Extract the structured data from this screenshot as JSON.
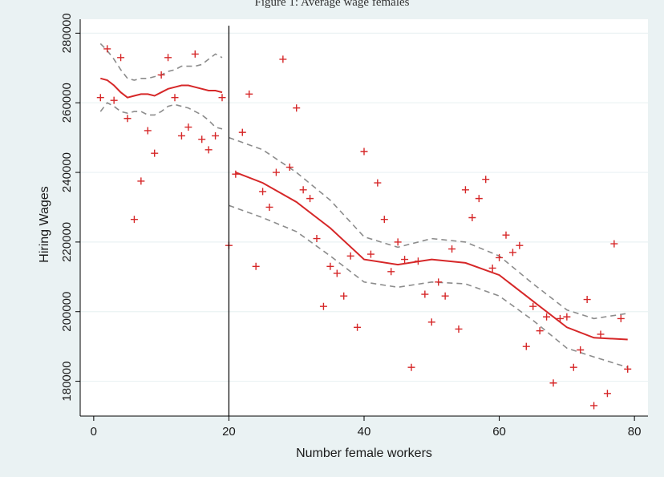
{
  "figure_title": "Figure 1: Average wage females",
  "chart_data": {
    "type": "scatter",
    "xlabel": "Number female workers",
    "ylabel": "Hiring Wages",
    "xlim": [
      -2,
      82
    ],
    "ylim": [
      170000,
      284000
    ],
    "x_ticks": [
      0,
      20,
      40,
      60,
      80
    ],
    "x_tick_labels": [
      "0",
      "20",
      "40",
      "60",
      "80"
    ],
    "y_ticks": [
      180000,
      200000,
      220000,
      240000,
      260000,
      280000
    ],
    "y_tick_labels": [
      "180000",
      "200000",
      "220000",
      "240000",
      "260000",
      "280000"
    ],
    "grid": "horizontal",
    "legend": "none",
    "cutoff_x": 20,
    "colors": {
      "points": "#d62728",
      "fit": "#d62728",
      "ci": "#8c8c8c",
      "cutoff": "#000000",
      "grid": "#eaf2f3",
      "outer_bg": "#eaf2f3"
    },
    "points": [
      [
        1,
        261500
      ],
      [
        2,
        275500
      ],
      [
        3,
        260700
      ],
      [
        4,
        273000
      ],
      [
        5,
        255500
      ],
      [
        6,
        226500
      ],
      [
        7,
        237500
      ],
      [
        8,
        252000
      ],
      [
        9,
        245500
      ],
      [
        10,
        268000
      ],
      [
        11,
        273000
      ],
      [
        12,
        261500
      ],
      [
        13,
        250500
      ],
      [
        14,
        253000
      ],
      [
        15,
        274000
      ],
      [
        16,
        249500
      ],
      [
        17,
        246500
      ],
      [
        18,
        250500
      ],
      [
        19,
        261500
      ],
      [
        20,
        219000
      ],
      [
        21,
        239500
      ],
      [
        22,
        251500
      ],
      [
        23,
        262500
      ],
      [
        24,
        213000
      ],
      [
        25,
        234500
      ],
      [
        26,
        230000
      ],
      [
        27,
        240000
      ],
      [
        28,
        272500
      ],
      [
        29,
        241500
      ],
      [
        30,
        258500
      ],
      [
        31,
        235000
      ],
      [
        32,
        232500
      ],
      [
        33,
        221000
      ],
      [
        34,
        201500
      ],
      [
        35,
        213000
      ],
      [
        36,
        211000
      ],
      [
        37,
        204500
      ],
      [
        38,
        216000
      ],
      [
        39,
        195500
      ],
      [
        40,
        246000
      ],
      [
        41,
        216500
      ],
      [
        42,
        237000
      ],
      [
        43,
        226500
      ],
      [
        44,
        211500
      ],
      [
        45,
        220000
      ],
      [
        46,
        215000
      ],
      [
        47,
        184000
      ],
      [
        48,
        214500
      ],
      [
        49,
        205000
      ],
      [
        50,
        197000
      ],
      [
        51,
        208500
      ],
      [
        52,
        204500
      ],
      [
        53,
        218000
      ],
      [
        54,
        195000
      ],
      [
        55,
        235000
      ],
      [
        56,
        227000
      ],
      [
        57,
        232500
      ],
      [
        58,
        238000
      ],
      [
        59,
        212500
      ],
      [
        60,
        215500
      ],
      [
        61,
        222000
      ],
      [
        62,
        217000
      ],
      [
        63,
        219000
      ],
      [
        64,
        190000
      ],
      [
        65,
        201500
      ],
      [
        66,
        194500
      ],
      [
        67,
        198500
      ],
      [
        68,
        179500
      ],
      [
        69,
        198000
      ],
      [
        70,
        198500
      ],
      [
        71,
        184000
      ],
      [
        72,
        189000
      ],
      [
        73,
        203500
      ],
      [
        74,
        173000
      ],
      [
        75,
        193500
      ],
      [
        76,
        176500
      ],
      [
        77,
        219500
      ],
      [
        78,
        198000
      ],
      [
        79,
        183500
      ]
    ],
    "fit_left": {
      "x": [
        1,
        2,
        3,
        4,
        5,
        6,
        7,
        8,
        9,
        10,
        11,
        12,
        13,
        14,
        15,
        16,
        17,
        18,
        19
      ],
      "y": [
        267000,
        266500,
        265000,
        263000,
        261500,
        262000,
        262500,
        262500,
        262000,
        263000,
        264000,
        264500,
        265000,
        265000,
        264500,
        264000,
        263500,
        263500,
        263000
      ]
    },
    "ci_left_upper": {
      "x": [
        1,
        2,
        3,
        4,
        5,
        6,
        7,
        8,
        9,
        10,
        11,
        12,
        13,
        14,
        15,
        16,
        17,
        18,
        19
      ],
      "y": [
        277000,
        275000,
        272500,
        269500,
        267000,
        266500,
        267000,
        267000,
        267500,
        268000,
        269000,
        269500,
        270500,
        270500,
        270500,
        271000,
        272500,
        274000,
        273000
      ]
    },
    "ci_left_lower": {
      "x": [
        1,
        2,
        3,
        4,
        5,
        6,
        7,
        8,
        9,
        10,
        11,
        12,
        13,
        14,
        15,
        16,
        17,
        18,
        19
      ],
      "y": [
        257500,
        260000,
        259000,
        257500,
        257000,
        257500,
        257500,
        256500,
        256500,
        257500,
        259000,
        259500,
        259000,
        258500,
        257500,
        256500,
        255000,
        253000,
        252500
      ]
    },
    "fit_right": {
      "x": [
        21,
        25,
        30,
        35,
        40,
        45,
        50,
        55,
        60,
        65,
        70,
        74,
        79
      ],
      "y": [
        240000,
        237000,
        231500,
        224000,
        215000,
        213500,
        215000,
        214000,
        210500,
        203000,
        195500,
        192500,
        192000
      ]
    },
    "ci_right_upper": {
      "x": [
        20,
        25,
        30,
        35,
        40,
        45,
        50,
        55,
        60,
        65,
        70,
        74,
        79
      ],
      "y": [
        250000,
        246500,
        240000,
        232000,
        221500,
        218500,
        221000,
        220000,
        216000,
        208000,
        200500,
        198000,
        199500
      ]
    },
    "ci_right_lower": {
      "x": [
        20,
        25,
        30,
        35,
        40,
        45,
        50,
        55,
        60,
        65,
        70,
        74,
        79
      ],
      "y": [
        230500,
        227000,
        223000,
        216000,
        208500,
        207000,
        208500,
        208000,
        204500,
        197500,
        189500,
        187000,
        184000
      ]
    }
  }
}
